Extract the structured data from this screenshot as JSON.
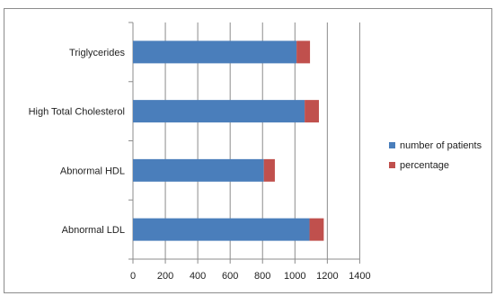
{
  "chart_data": {
    "type": "bar",
    "orientation": "horizontal",
    "stacked": true,
    "categories": [
      "Abnormal LDL",
      "Abnormal HDL",
      "High Total Cholesterol",
      "Triglycerides"
    ],
    "series": [
      {
        "name": "number of patients",
        "color": "#4a7ebb",
        "values": [
          1090,
          808,
          1060,
          1010
        ]
      },
      {
        "name": "percentage",
        "color": "#c0504d",
        "values": [
          88,
          68,
          88,
          83
        ]
      }
    ],
    "xlim": [
      0,
      1400
    ],
    "xticks": [
      "0",
      "200",
      "400",
      "600",
      "800",
      "1000",
      "1200",
      "1400"
    ],
    "grid": "vertical",
    "legend": "right",
    "title": "",
    "xlabel": "",
    "ylabel": ""
  }
}
